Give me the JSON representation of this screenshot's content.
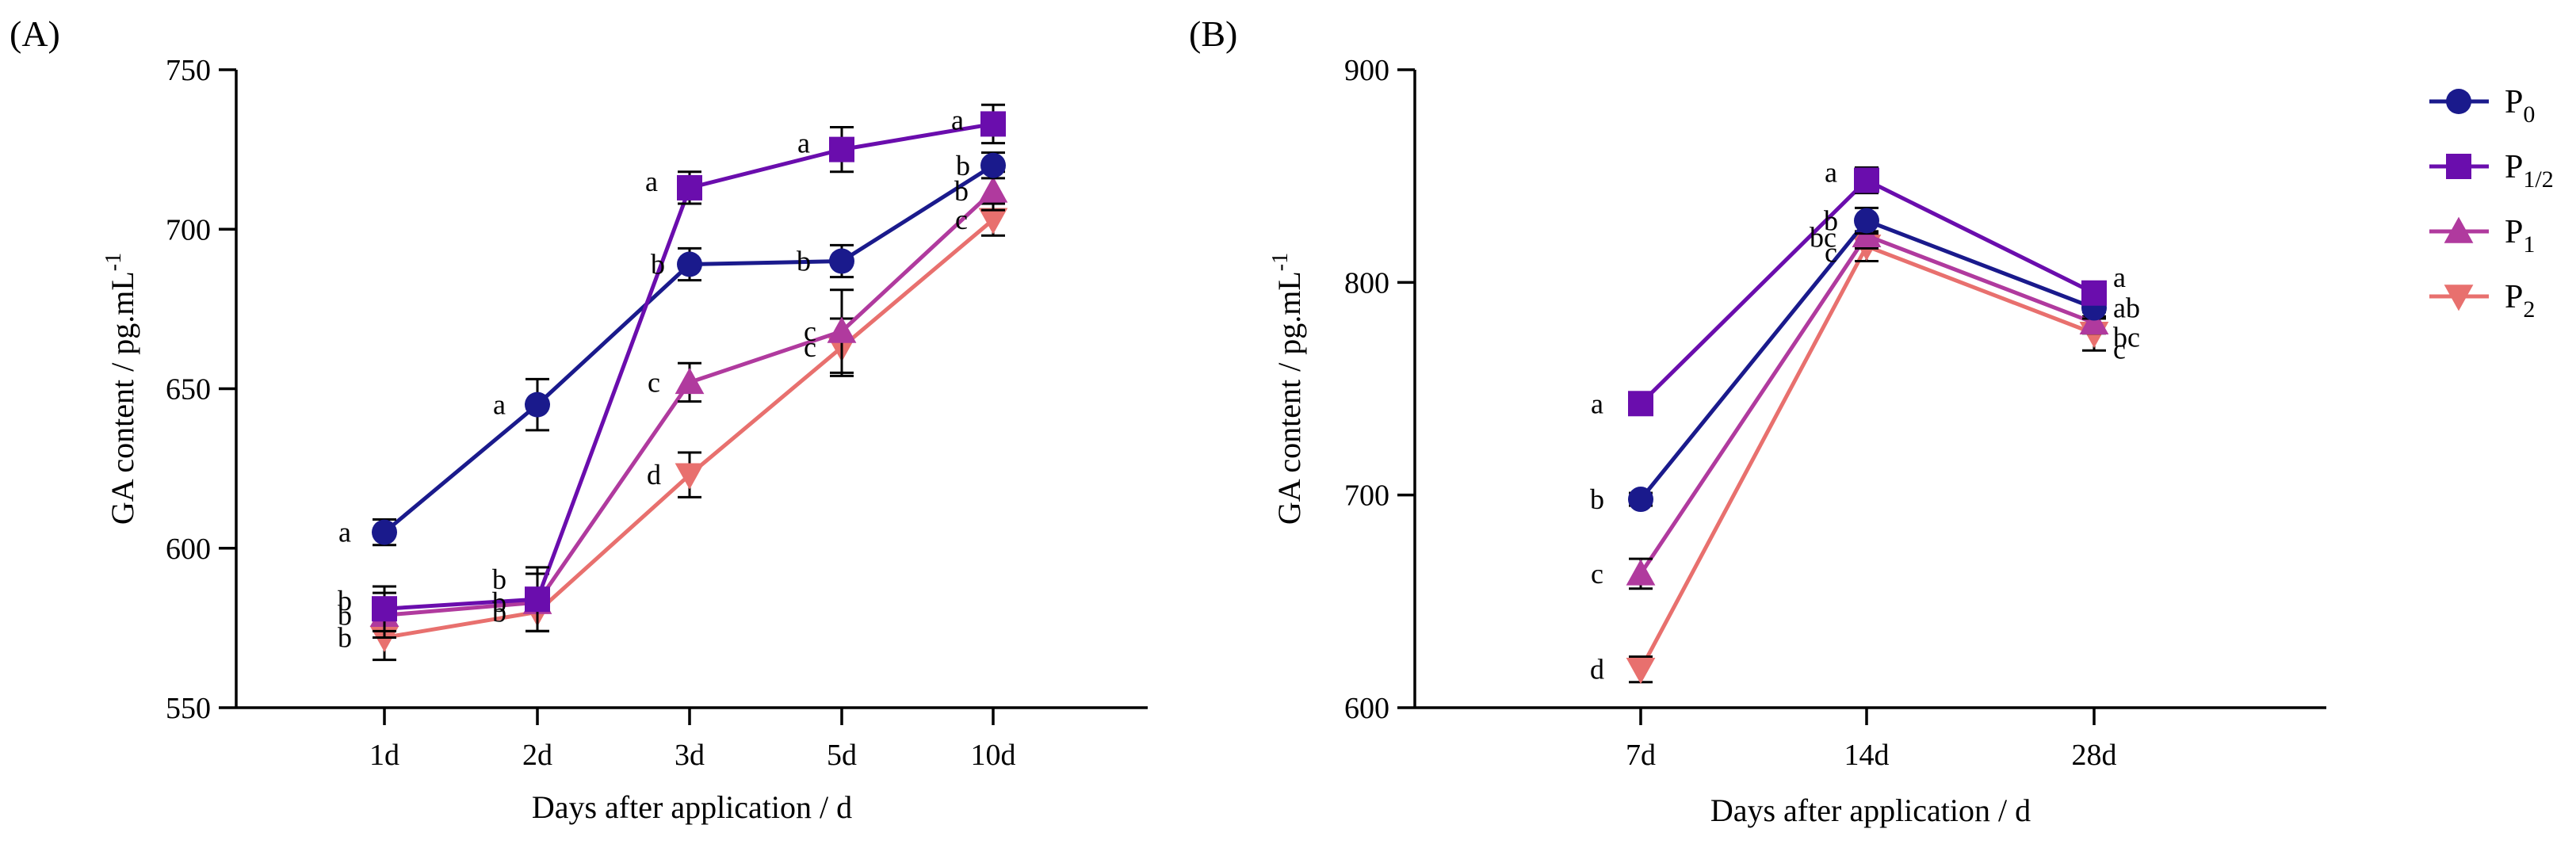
{
  "panels": [
    {
      "label": "(A)",
      "chart_data": {
        "type": "line",
        "xlabel": "Days after application / d",
        "ylabel": {
          "text": "GA content / pg.mL",
          "sup": "-1"
        },
        "categories": [
          "1d",
          "2d",
          "3d",
          "5d",
          "10d"
        ],
        "ylim": [
          550,
          750
        ],
        "yticks": [
          550,
          600,
          650,
          700,
          750
        ],
        "grid": false,
        "error_bars": true,
        "series": [
          {
            "key": "P0",
            "values": [
              605,
              645,
              689,
              690,
              720
            ],
            "errors": [
              4,
              8,
              5,
              5,
              4
            ],
            "letters": [
              "a",
              "a",
              "b",
              "b",
              "b"
            ]
          },
          {
            "key": "P12",
            "values": [
              581,
              584,
              713,
              725,
              733
            ],
            "errors": [
              7,
              10,
              5,
              7,
              6
            ],
            "letters": [
              "b",
              "b",
              "a",
              "a",
              "a"
            ]
          },
          {
            "key": "P1",
            "values": [
              579,
              583,
              652,
              668,
              712
            ],
            "errors": [
              7,
              9,
              6,
              13,
              6
            ],
            "letters": [
              "b",
              "b",
              "c",
              "c",
              "b"
            ]
          },
          {
            "key": "P2",
            "values": [
              572,
              580,
              623,
              663,
              703
            ],
            "errors": [
              7,
              6,
              7,
              9,
              5
            ],
            "letters": [
              "b",
              "b",
              "d",
              "c",
              "c"
            ]
          }
        ]
      }
    },
    {
      "label": "(B)",
      "chart_data": {
        "type": "line",
        "xlabel": "Days after application / d",
        "ylabel": {
          "text": "GA content / pg.mL",
          "sup": "-1"
        },
        "categories": [
          "7d",
          "14d",
          "28d"
        ],
        "ylim": [
          600,
          900
        ],
        "yticks": [
          600,
          700,
          800,
          900
        ],
        "grid": false,
        "error_bars": true,
        "series": [
          {
            "key": "P0",
            "values": [
              698,
              829,
              788
            ],
            "errors": [
              3,
              6,
              5
            ],
            "letters": [
              "b",
              "b",
              "ab"
            ]
          },
          {
            "key": "P12",
            "values": [
              743,
              848,
              795
            ],
            "errors": [
              3,
              6,
              4
            ],
            "letters": [
              "a",
              "a",
              "a"
            ]
          },
          {
            "key": "P1",
            "values": [
              663,
              822,
              781
            ],
            "errors": [
              7,
              6,
              5
            ],
            "letters": [
              "c",
              "bc",
              "bc"
            ]
          },
          {
            "key": "P2",
            "values": [
              618,
              817,
              776
            ],
            "errors": [
              6,
              7,
              8
            ],
            "letters": [
              "d",
              "c",
              "c"
            ]
          }
        ]
      }
    }
  ],
  "legend": {
    "placement": "right",
    "items": [
      {
        "key": "P0",
        "base": "P",
        "sub": "0",
        "color": "#1a1a8c",
        "marker": "circle"
      },
      {
        "key": "P12",
        "base": "P",
        "sub": "1/2",
        "color": "#6a0dad",
        "marker": "square"
      },
      {
        "key": "P1",
        "base": "P",
        "sub": "1",
        "color": "#b03a9e",
        "marker": "triangle-up"
      },
      {
        "key": "P2",
        "base": "P",
        "sub": "2",
        "color": "#e8706e",
        "marker": "triangle-down"
      }
    ]
  }
}
